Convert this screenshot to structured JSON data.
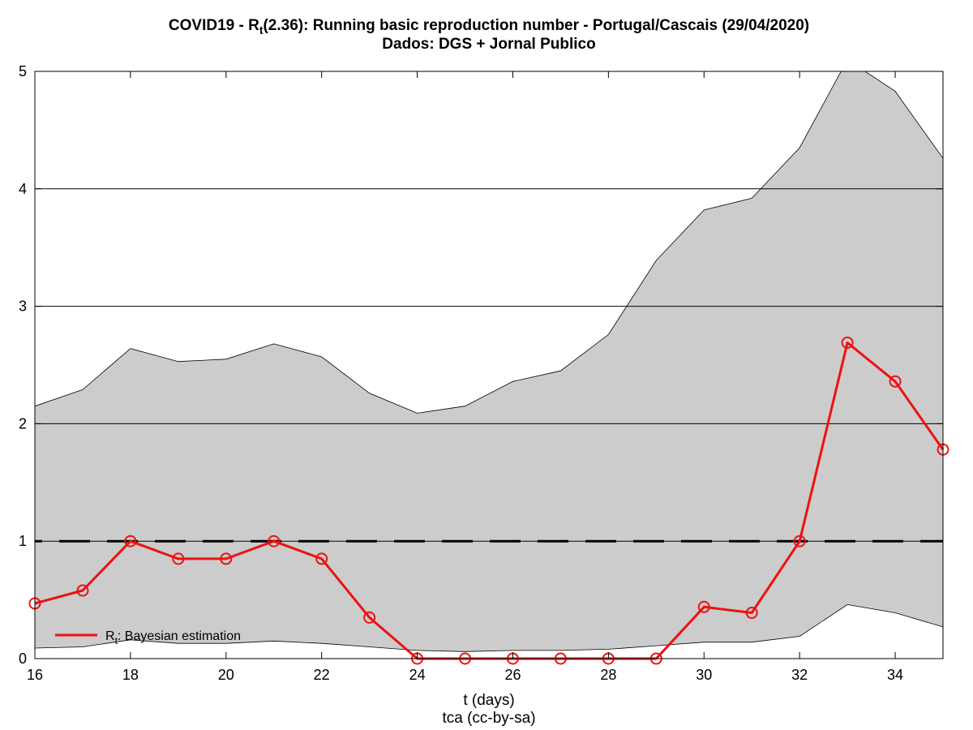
{
  "chart_data": {
    "type": "line",
    "title_line1_prefix": "COVID19 - R",
    "title_line1_sub": "t",
    "title_line1_suffix": "(2.36): Running basic reproduction number - Portugal/Cascais (29/04/2020)",
    "title_line2": "Dados: DGS + Jornal Publico",
    "xlabel": "t (days)",
    "footer": "tca (cc-by-sa)",
    "xlim": [
      16,
      35
    ],
    "ylim": [
      0,
      5
    ],
    "xticks": [
      "16",
      "18",
      "20",
      "22",
      "24",
      "26",
      "28",
      "30",
      "32",
      "34"
    ],
    "yticks": [
      "0",
      "1",
      "2",
      "3",
      "4",
      "5"
    ],
    "grid": "horizontal",
    "reference_line": 1,
    "legend_position": "bottom-left",
    "x": [
      16,
      17,
      18,
      19,
      20,
      21,
      22,
      23,
      24,
      25,
      26,
      27,
      28,
      29,
      30,
      31,
      32,
      33,
      34,
      35
    ],
    "upper": [
      2.15,
      2.29,
      2.64,
      2.53,
      2.55,
      2.68,
      2.57,
      2.26,
      2.09,
      2.15,
      2.36,
      2.45,
      2.76,
      3.39,
      3.82,
      3.92,
      4.35,
      5.1,
      4.83,
      4.26
    ],
    "lower": [
      0.09,
      0.1,
      0.16,
      0.13,
      0.13,
      0.15,
      0.13,
      0.1,
      0.07,
      0.06,
      0.07,
      0.07,
      0.08,
      0.11,
      0.14,
      0.14,
      0.19,
      0.46,
      0.39,
      0.27
    ],
    "series": [
      {
        "name_prefix": "R",
        "name_sub": "t",
        "name_suffix": ": Bayesian estimation",
        "values": [
          0.47,
          0.58,
          1.0,
          0.85,
          0.85,
          1.0,
          0.85,
          0.35,
          0.0,
          0.0,
          0.0,
          0.0,
          0.0,
          0.0,
          0.44,
          0.39,
          1.0,
          2.69,
          2.36,
          1.78
        ]
      }
    ],
    "colors": {
      "band": "#cccccc",
      "line": "#ee1111",
      "grid": "#000000",
      "reference": "#000000"
    }
  }
}
